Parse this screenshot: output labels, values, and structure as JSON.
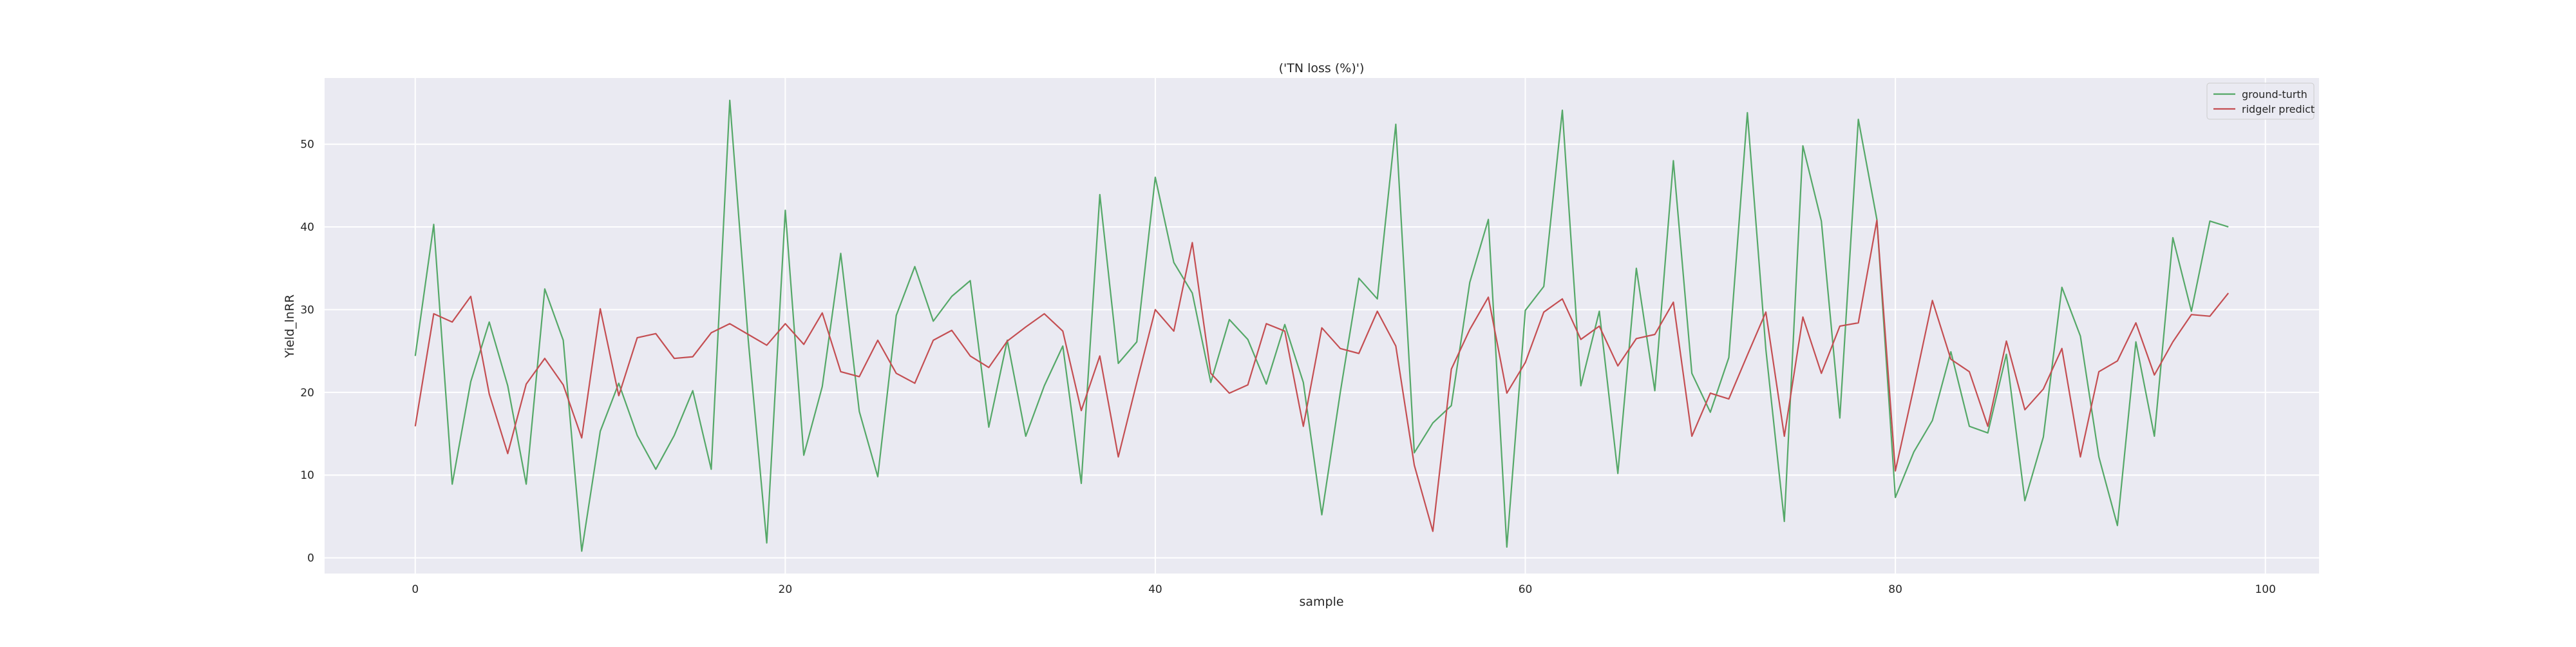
{
  "chart_data": {
    "type": "line",
    "title": "('TN loss (%)')",
    "xlabel": "sample",
    "ylabel": "Yield_lnRR",
    "xlim": [
      -4.9,
      102.9
    ],
    "ylim": [
      -1.9,
      58.0
    ],
    "xticks": [
      0,
      20,
      40,
      60,
      80,
      100
    ],
    "yticks": [
      0,
      10,
      20,
      30,
      40,
      50
    ],
    "grid": true,
    "legend_position": "top-right",
    "background_color": "#eaeaf2",
    "grid_color": "#ffffff",
    "x": [
      0,
      1,
      2,
      3,
      4,
      5,
      6,
      7,
      8,
      9,
      10,
      11,
      12,
      13,
      14,
      15,
      16,
      17,
      18,
      19,
      20,
      21,
      22,
      23,
      24,
      25,
      26,
      27,
      28,
      29,
      30,
      31,
      32,
      33,
      34,
      35,
      36,
      37,
      38,
      39,
      40,
      41,
      42,
      43,
      44,
      45,
      46,
      47,
      48,
      49,
      50,
      51,
      52,
      53,
      54,
      55,
      56,
      57,
      58,
      59,
      60,
      61,
      62,
      63,
      64,
      65,
      66,
      67,
      68,
      69,
      70,
      71,
      72,
      73,
      74,
      75,
      76,
      77,
      78,
      79,
      80,
      81,
      82,
      83,
      84,
      85,
      86,
      87,
      88,
      89,
      90,
      91,
      92,
      93,
      94,
      95,
      96,
      97,
      98
    ],
    "series": [
      {
        "name": "ground-turth",
        "color": "#55a868",
        "values": [
          24.4,
          40.3,
          8.9,
          21.3,
          28.5,
          20.8,
          8.9,
          32.5,
          26.3,
          0.8,
          15.3,
          21.1,
          14.8,
          10.7,
          14.8,
          20.2,
          10.7,
          55.3,
          26.3,
          1.8,
          42.0,
          12.4,
          20.7,
          36.8,
          17.7,
          9.8,
          29.3,
          35.2,
          28.6,
          31.6,
          33.5,
          15.8,
          26.3,
          14.7,
          20.8,
          25.6,
          9.0,
          43.9,
          23.5,
          26.1,
          46.0,
          35.7,
          32.0,
          21.2,
          28.8,
          26.4,
          21.0,
          28.2,
          21.2,
          5.2,
          20.0,
          33.8,
          31.3,
          52.4,
          12.7,
          16.3,
          18.4,
          33.3,
          40.9,
          1.3,
          29.9,
          32.8,
          54.1,
          20.8,
          29.8,
          10.2,
          35.0,
          20.2,
          48.0,
          22.3,
          17.6,
          24.2,
          53.8,
          25.2,
          4.4,
          49.8,
          40.7,
          16.9,
          53.0,
          40.9,
          7.3,
          12.8,
          16.6,
          24.9,
          15.9,
          15.1,
          24.6,
          6.9,
          14.6,
          32.7,
          26.8,
          12.2,
          3.9,
          26.1,
          14.7,
          38.7,
          29.8,
          40.7,
          40.0
        ]
      },
      {
        "name": "ridgelr predict",
        "color": "#c44e52",
        "values": [
          15.9,
          29.5,
          28.5,
          31.6,
          19.8,
          12.6,
          21.0,
          24.1,
          20.9,
          14.5,
          30.1,
          19.6,
          26.6,
          27.1,
          24.1,
          24.3,
          27.2,
          28.3,
          27.0,
          25.7,
          28.3,
          25.8,
          29.6,
          22.5,
          21.9,
          26.3,
          22.3,
          21.1,
          26.3,
          27.5,
          24.4,
          23.0,
          26.2,
          27.9,
          29.5,
          27.4,
          17.8,
          24.4,
          12.2,
          21.2,
          30.0,
          27.4,
          38.1,
          22.3,
          19.9,
          20.9,
          28.3,
          27.4,
          15.9,
          27.8,
          25.3,
          24.7,
          29.8,
          25.6,
          11.2,
          3.2,
          22.8,
          27.6,
          31.5,
          19.9,
          23.6,
          29.7,
          31.3,
          26.4,
          28.0,
          23.2,
          26.5,
          27.0,
          30.9,
          14.7,
          19.9,
          19.2,
          24.5,
          29.7,
          14.7,
          29.1,
          22.3,
          28.0,
          28.4,
          40.8,
          10.5,
          20.6,
          31.1,
          24.0,
          22.5,
          15.9,
          26.2,
          17.9,
          20.4,
          25.3,
          12.2,
          22.5,
          23.8,
          28.4,
          22.1,
          26.1,
          29.4,
          29.2,
          32.0
        ]
      }
    ]
  }
}
